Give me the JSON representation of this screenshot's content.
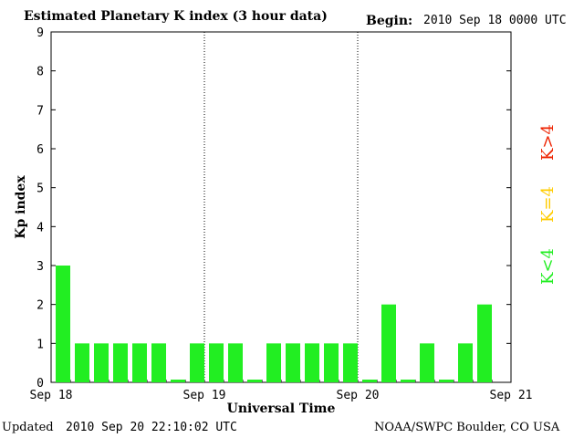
{
  "header": {
    "title": "Estimated Planetary K index (3 hour data)",
    "begin_label": "Begin:",
    "begin_value": "2010 Sep 18 0000 UTC"
  },
  "footer": {
    "updated_label": "Updated",
    "updated_value": "2010 Sep 20 22:10:02 UTC",
    "source": "NOAA/SWPC Boulder, CO USA"
  },
  "legend": {
    "low": {
      "text": "K<4",
      "color": "#22ee22"
    },
    "mid": {
      "text": "K=4",
      "color": "#ffcc00"
    },
    "high": {
      "text": "K>4",
      "color": "#ee2200"
    }
  },
  "chart_data": {
    "type": "bar",
    "title": "Estimated Planetary K index (3 hour data)",
    "xlabel": "Universal Time",
    "ylabel": "Kp index",
    "ylim": [
      0,
      9
    ],
    "yticks": [
      "0",
      "1",
      "2",
      "3",
      "4",
      "5",
      "6",
      "7",
      "8",
      "9"
    ],
    "xticks": [
      "Sep 18",
      "Sep 19",
      "Sep 20",
      "Sep 21"
    ],
    "bar_color": "#22ee22",
    "interval_hours": 3,
    "values": [
      3,
      1,
      1,
      1,
      1,
      1,
      0,
      1,
      1,
      1,
      0,
      1,
      1,
      1,
      1,
      1,
      0,
      2,
      0,
      1,
      0,
      1,
      2
    ],
    "grid": "dotted day separators"
  }
}
